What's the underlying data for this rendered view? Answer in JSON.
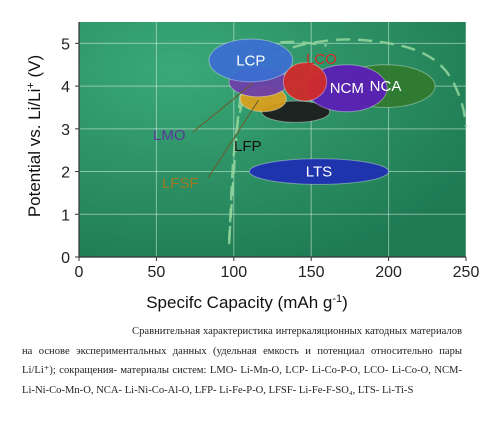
{
  "chart_data": {
    "type": "scatter",
    "title": "",
    "xlabel": "Specifc Capacity (mAh g",
    "xlabel_sup": "-1",
    "xlabel_tail": ")",
    "ylabel": "Potential vs. Li/Li",
    "ylabel_sup": "+",
    "ylabel_tail": " (V)",
    "xlim": [
      0,
      250
    ],
    "ylim": [
      0,
      5.5
    ],
    "x_ticks": [
      0,
      50,
      100,
      150,
      200,
      250
    ],
    "x_tick_labels": [
      "0",
      "50",
      "100",
      "150",
      "200",
      "250"
    ],
    "y_ticks": [
      0,
      1,
      2,
      3,
      4,
      5
    ],
    "y_tick_labels": [
      "0",
      "1",
      "2",
      "3",
      "4",
      "5"
    ],
    "grid": true,
    "background_color": "#2f9a6c",
    "boundary_curves": [
      {
        "points": [
          [
            97,
            0.3
          ],
          [
            100,
            2.8
          ],
          [
            108,
            4.0
          ],
          [
            128,
            4.85
          ],
          [
            165,
            5.12
          ],
          [
            195,
            5.05
          ],
          [
            220,
            4.85
          ],
          [
            238,
            4.4
          ],
          [
            248,
            3.6
          ],
          [
            250,
            3.05
          ]
        ]
      },
      {
        "points": [
          [
            97,
            0.4
          ],
          [
            105,
            4.6
          ],
          [
            120,
            5.0
          ],
          [
            140,
            5.05
          ],
          [
            160,
            4.95
          ]
        ]
      }
    ],
    "materials": [
      {
        "name": "LFP",
        "label": "LFP",
        "x": 140,
        "y": 3.4,
        "rx": 22,
        "ry": 0.25,
        "color": "#1c1c1c",
        "label_color": "#111111",
        "label_inside": false
      },
      {
        "name": "LFSF",
        "label": "LFSF",
        "x": 119,
        "y": 3.7,
        "rx": 15,
        "ry": 0.3,
        "color": "#d8a020",
        "label_color": "#a0781f",
        "label_inside": false
      },
      {
        "name": "LMO",
        "label": "LMO",
        "x": 116,
        "y": 4.1,
        "rx": 19,
        "ry": 0.35,
        "color": "#6b3fa8",
        "label_color": "#5a3a98",
        "label_inside": false
      },
      {
        "name": "NCA",
        "label": "NCA",
        "x": 198,
        "y": 4.0,
        "rx": 32,
        "ry": 0.5,
        "color": "#2f7a2f",
        "label_color": "#ffffff",
        "label_inside": true
      },
      {
        "name": "NCM",
        "label": "NCM",
        "x": 173,
        "y": 3.95,
        "rx": 26,
        "ry": 0.55,
        "color": "#5b1fb5",
        "label_color": "#ffffff",
        "label_inside": true
      },
      {
        "name": "LCP",
        "label": "LCP",
        "x": 111,
        "y": 4.6,
        "rx": 27,
        "ry": 0.5,
        "color": "#3b6fd0",
        "label_color": "#ffffff",
        "label_inside": true
      },
      {
        "name": "LCO",
        "label": "LCO",
        "x": 146,
        "y": 4.1,
        "rx": 14,
        "ry": 0.45,
        "color": "#d12a2a",
        "label_color": "#d42a2a",
        "label_inside": false
      },
      {
        "name": "LTS",
        "label": "LTS",
        "x": 155,
        "y": 2.0,
        "rx": 45,
        "ry": 0.3,
        "color": "#1d2fb0",
        "label_color": "#ffffff",
        "label_inside": true
      }
    ]
  },
  "caption": {
    "text": "Сравнительная характеристика интеркаляционных катодных материалов на основе экспериментальных данных (удельная емкость и потенциал относительно пары Li/Li⁺); сокращения- материалы систем: LMO- Li-Mn-O, LCP- Li-Co-P-O, LCO- Li-Co-O, NCM- Li-Ni-Co-Mn-O, NCA- Li-Ni-Co-Al-O, LFP- Li-Fe-P-O, LFSF- Li-Fe-F-SO₄, LTS- Li-Ti-S"
  }
}
